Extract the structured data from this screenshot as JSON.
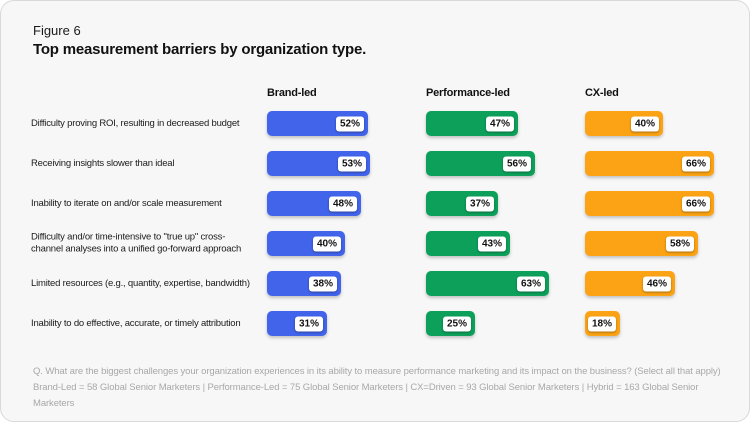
{
  "figure_label": "Figure 6",
  "title": "Top measurement barriers by organization type.",
  "footnotes": [
    "Q. What are the biggest challenges your organization experiences in its ability to measure performance marketing and its impact on the business? (Select all that apply)",
    "Brand-Led = 58 Global Senior Marketers | Performance-Led = 75 Global Senior Marketers | CX=Driven = 93 Global Senior Marketers | Hybrid = 163 Global Senior Marketers"
  ],
  "chart_data": {
    "type": "bar",
    "orientation": "horizontal",
    "title": "Top measurement barriers by organization type.",
    "value_suffix": "%",
    "value_format": "percent",
    "xlim": [
      0,
      70
    ],
    "grid": false,
    "legend_position": "column-headers",
    "categories": [
      "Difficulty proving ROI, resulting in decreased budget",
      "Receiving insights slower than ideal",
      "Inability to iterate on and/or scale measurement",
      "Difficulty and/or time-intensive to \"true up\" cross-channel analyses into a unified go-forward approach",
      "Limited resources (e.g., quantity, expertise, bandwidth)",
      "Inability to do effective, accurate, or timely attribution"
    ],
    "series": [
      {
        "name": "Brand-led",
        "color": "#4164eb",
        "values": [
          52,
          53,
          48,
          40,
          38,
          31
        ]
      },
      {
        "name": "Performance-led",
        "color": "#0da05a",
        "values": [
          47,
          56,
          37,
          43,
          63,
          25
        ]
      },
      {
        "name": "CX-led",
        "color": "#fba314",
        "values": [
          40,
          66,
          66,
          58,
          46,
          18
        ]
      }
    ]
  }
}
